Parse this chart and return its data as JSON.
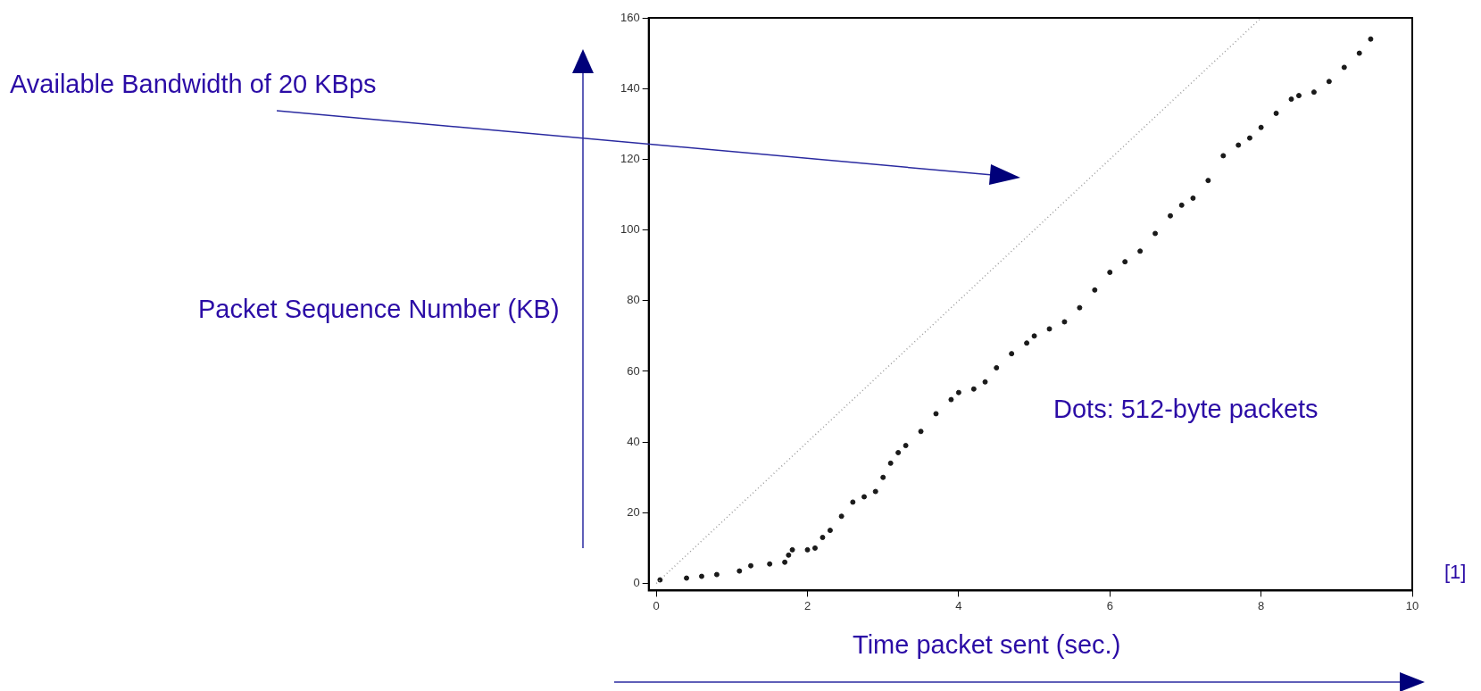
{
  "chart_data": {
    "type": "scatter",
    "xlabel": "Time packet sent (sec.)",
    "ylabel": "Packet Sequence Number (KB)",
    "xlim": [
      -0.1,
      10
    ],
    "ylim": [
      -2,
      160
    ],
    "xticks": [
      0,
      2,
      4,
      6,
      8,
      10
    ],
    "yticks": [
      0,
      20,
      40,
      60,
      80,
      100,
      120,
      140,
      160
    ],
    "grid": false,
    "marker": "circle",
    "annotations": [
      "Available Bandwidth of 20 KBps",
      "Dots: 512-byte packets",
      "[1]"
    ],
    "series": [
      {
        "type": "line",
        "color": "#9a9a9a",
        "line_style": "dotted",
        "marker": "none",
        "x": [
          0,
          8
        ],
        "values": [
          0,
          160
        ]
      },
      {
        "color": "#1a1a1a",
        "x": [
          0.05,
          0.4,
          0.6,
          0.8,
          1.1,
          1.25,
          1.5,
          1.7,
          1.75,
          1.8,
          2.0,
          2.1,
          2.2,
          2.3,
          2.45,
          2.6,
          2.75,
          2.9,
          3.0,
          3.1,
          3.2,
          3.3,
          3.5,
          3.7,
          3.9,
          4.0,
          4.2,
          4.35,
          4.5,
          4.7,
          4.9,
          5.0,
          5.2,
          5.4,
          5.6,
          5.8,
          6.0,
          6.2,
          6.4,
          6.6,
          6.8,
          6.95,
          7.1,
          7.3,
          7.5,
          7.7,
          7.85,
          8.0,
          8.2,
          8.4,
          8.5,
          8.7,
          8.9,
          9.1,
          9.3,
          9.45
        ],
        "values": [
          1,
          1.5,
          2,
          2.5,
          3.5,
          5,
          5.5,
          6,
          8,
          9.5,
          9.5,
          10,
          13,
          15,
          19,
          23,
          24.5,
          26,
          30,
          34,
          37,
          39,
          43,
          48,
          52,
          54,
          55,
          57,
          61,
          65,
          68,
          70,
          72,
          74,
          78,
          83,
          88,
          91,
          94,
          99,
          104,
          107,
          109,
          114,
          121,
          124,
          126,
          129,
          133,
          137,
          138,
          139,
          142,
          146,
          150,
          154
        ]
      }
    ]
  }
}
